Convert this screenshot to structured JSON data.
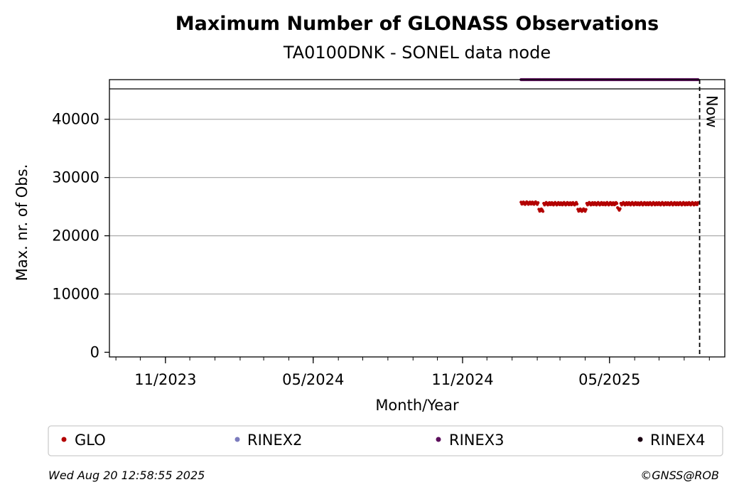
{
  "chart_data": {
    "type": "scatter",
    "title": "Maximum Number of GLONASS Observations",
    "subtitle": "TA0100DNK - SONEL data node",
    "xlabel": "Month/Year",
    "ylabel": "Max. nr. of Obs.",
    "x_ticks": [
      "11/2023",
      "05/2024",
      "11/2024",
      "05/2025"
    ],
    "y_ticks": [
      0,
      10000,
      20000,
      30000,
      40000
    ],
    "ylim": [
      -800,
      46800
    ],
    "xlim": [
      "2023-08-24",
      "2025-09-20"
    ],
    "now_date": "2025-08-20",
    "now_label": "Now",
    "grid": "y",
    "legend": "bottom",
    "series": [
      {
        "name": "GLO",
        "color": "#b30000",
        "segments": [
          {
            "start": "2025-01-12",
            "end": "2025-02-02",
            "base": 25600
          },
          {
            "start": "2025-02-03",
            "end": "2025-02-08",
            "base": 24400
          },
          {
            "start": "2025-02-09",
            "end": "2025-03-22",
            "base": 25500
          },
          {
            "start": "2025-03-23",
            "end": "2025-04-02",
            "base": 24400
          },
          {
            "start": "2025-04-03",
            "end": "2025-05-10",
            "base": 25500
          },
          {
            "start": "2025-05-11",
            "end": "2025-05-14",
            "base": 24600
          },
          {
            "start": "2025-05-15",
            "end": "2025-08-18",
            "base": 25500
          }
        ]
      },
      {
        "name": "RINEX2",
        "color": "#7b7bbd"
      },
      {
        "name": "RINEX3",
        "color": "#5c0f5c",
        "segments": [
          {
            "start": "2025-01-12",
            "end": "2025-08-18",
            "base": 46800
          }
        ]
      },
      {
        "name": "RINEX4",
        "color": "#1a0010"
      }
    ]
  },
  "footer": {
    "timestamp": "Wed Aug 20 12:58:55 2025",
    "credit": "©GNSS@ROB"
  }
}
